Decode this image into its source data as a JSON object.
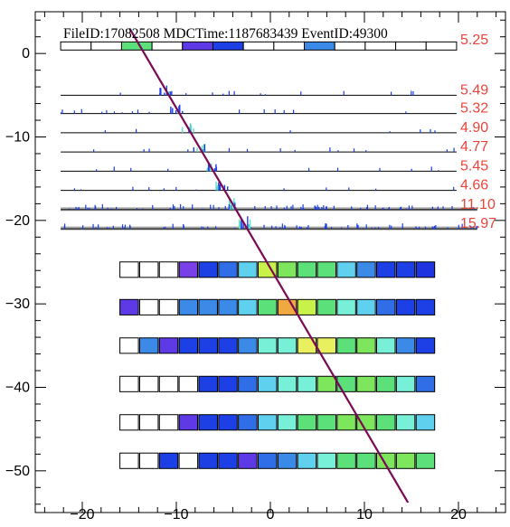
{
  "chart_data": {
    "type": "scatter",
    "title": "FileID:17082508 MDCTime:1187683439 EventID:49300",
    "xlim": [
      -25,
      25
    ],
    "ylim": [
      -55,
      5
    ],
    "x_ticks": [
      -20,
      -10,
      0,
      10,
      20
    ],
    "y_ticks": [
      0,
      -10,
      -20,
      -30,
      -40,
      -50
    ],
    "grid": false,
    "track_line": {
      "x1": -15.0,
      "y1": 3.0,
      "x2": 14.6,
      "y2": -53.8,
      "color": "#8b0038"
    },
    "colors": {
      "axis": "#000000",
      "value_label": "#e8463c",
      "palette": {
        "w": "#ffffff",
        "B": "#2033e0",
        "N": "#1c3fe6",
        "b": "#2f6ee6",
        "m": "#3c8ae8",
        "c": "#5fd0ee",
        "t": "#78f0d8",
        "g": "#5ce07a",
        "G": "#7ee65c",
        "y": "#c8f24a",
        "Y": "#e8f060",
        "o": "#f0a840",
        "v": "#5e3ae6",
        "V": "#7a40e8"
      }
    },
    "top_bar": {
      "y": 0.9,
      "x_start": -22.3,
      "x_end": 19.8,
      "cells": [
        "w",
        "w",
        "g",
        "w",
        "v",
        "N",
        "w",
        "w",
        "m",
        "w",
        "w",
        "w",
        "w"
      ],
      "value_label": "5.25"
    },
    "trace_rows": [
      {
        "y": -5.0,
        "x_start": -22.3,
        "x_end": 19.8,
        "value_label": "5.49"
      },
      {
        "y": -7.2,
        "x_start": -22.3,
        "x_end": 19.8,
        "value_label": "5.32"
      },
      {
        "y": -9.5,
        "x_start": -22.3,
        "x_end": 19.8,
        "value_label": "4.90"
      },
      {
        "y": -11.8,
        "x_start": -22.3,
        "x_end": 19.8,
        "value_label": "4.77"
      },
      {
        "y": -14.1,
        "x_start": -22.3,
        "x_end": 19.8,
        "value_label": "5.45"
      },
      {
        "y": -16.4,
        "x_start": -22.3,
        "x_end": 19.8,
        "value_label": "4.66"
      },
      {
        "y": -18.7,
        "x_start": -22.3,
        "x_end": 22.0,
        "value_label": "11.10"
      },
      {
        "y": -21.0,
        "x_start": -22.3,
        "x_end": 22.0,
        "value_label": "15.97"
      }
    ],
    "block_rows": [
      {
        "y": -25.9,
        "cells": [
          "w",
          "w",
          "w",
          "V",
          "N",
          "b",
          "c",
          "y",
          "G",
          "g",
          "g",
          "c",
          "m",
          "N",
          "N",
          "B"
        ]
      },
      {
        "y": -30.4,
        "cells": [
          "v",
          "w",
          "w",
          "m",
          "m",
          "m",
          "c",
          "g",
          "o",
          "y",
          "g",
          "t",
          "c",
          "b",
          "N",
          "N"
        ]
      },
      {
        "y": -35.0,
        "cells": [
          "w",
          "m",
          "v",
          "N",
          "N",
          "N",
          "m",
          "t",
          "t",
          "Y",
          "Y",
          "g",
          "G",
          "t",
          "m",
          "N"
        ]
      },
      {
        "y": -39.6,
        "cells": [
          "w",
          "w",
          "w",
          "w",
          "N",
          "N",
          "b",
          "c",
          "t",
          "t",
          "G",
          "g",
          "G",
          "g",
          "t",
          "b"
        ]
      },
      {
        "y": -44.2,
        "cells": [
          "w",
          "w",
          "w",
          "v",
          "N",
          "N",
          "b",
          "c",
          "t",
          "g",
          "g",
          "G",
          "G",
          "g",
          "t",
          "c"
        ]
      },
      {
        "y": -48.8,
        "cells": [
          "w",
          "w",
          "N",
          "w",
          "N",
          "N",
          "v",
          "b",
          "m",
          "c",
          "t",
          "g",
          "g",
          "G",
          "G",
          "g"
        ]
      }
    ],
    "block_grid": {
      "x_start": -16,
      "cell_width": 1.97,
      "cell_height": 1.85
    }
  }
}
